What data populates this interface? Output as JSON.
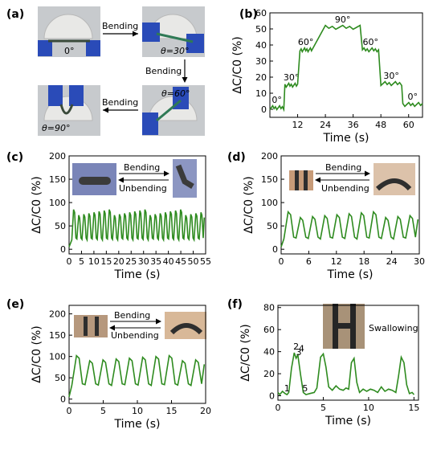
{
  "panel_labels": [
    "(a)",
    "(b)",
    "(c)",
    "(d)",
    "(e)",
    "(f)"
  ],
  "panel_a": {
    "arrow_bending_1": "Bending",
    "arrow_bending_2": "Bending",
    "arrow_bending_3": "Bending",
    "photo_labels": [
      "0°",
      "θ=30°",
      "θ=60°",
      "θ=90°"
    ]
  },
  "chart_data": [
    {
      "panel": "(b)",
      "type": "line",
      "color": "#2e8b1f",
      "xlabel": "Time (s)",
      "ylabel": "ΔC/C0 (%)",
      "xlim": [
        0,
        66
      ],
      "ylim": [
        -5,
        60
      ],
      "xticks": [
        12,
        24,
        36,
        48,
        60
      ],
      "yticks": [
        0,
        10,
        20,
        30,
        40,
        50,
        60
      ],
      "step_levels": [
        {
          "x0": 0,
          "x1": 6,
          "y": 1,
          "label": "0°"
        },
        {
          "x0": 6.5,
          "x1": 12,
          "y": 15,
          "label": "30°"
        },
        {
          "x0": 13,
          "x1": 18,
          "y": 37,
          "label": "60°"
        },
        {
          "x0": 24,
          "x1": 39,
          "y": 51,
          "label": "90°"
        },
        {
          "x0": 40,
          "x1": 47,
          "y": 37,
          "label": "60°"
        },
        {
          "x0": 48,
          "x1": 57,
          "y": 16,
          "label": "30°"
        },
        {
          "x0": 57.5,
          "x1": 66,
          "y": 3,
          "label": "0°"
        }
      ]
    },
    {
      "panel": "(c)",
      "type": "line",
      "color": "#2e8b1f",
      "xlabel": "Time (s)",
      "ylabel": "ΔC/C0 (%)",
      "xlim": [
        0,
        55
      ],
      "ylim": [
        -10,
        200
      ],
      "xticks": [
        0,
        5,
        10,
        15,
        20,
        25,
        30,
        35,
        40,
        45,
        50,
        55
      ],
      "yticks": [
        0,
        50,
        100,
        150,
        200
      ],
      "cycles": 26,
      "peak": 85,
      "baseline": 20,
      "inset_arrow_top": "Bending",
      "inset_arrow_bottom": "Unbending"
    },
    {
      "panel": "(d)",
      "type": "line",
      "color": "#2e8b1f",
      "xlabel": "Time (s)",
      "ylabel": "ΔC/C0 (%)",
      "xlim": [
        0,
        30
      ],
      "ylim": [
        -10,
        200
      ],
      "xticks": [
        0,
        6,
        12,
        18,
        24,
        30
      ],
      "yticks": [
        0,
        50,
        100,
        150,
        200
      ],
      "cycles": 11,
      "peak": 80,
      "baseline": 22,
      "inset_arrow_top": "Bending",
      "inset_arrow_bottom": "Unbending"
    },
    {
      "panel": "(e)",
      "type": "line",
      "color": "#2e8b1f",
      "xlabel": "Time (s)",
      "ylabel": "ΔC/C0 (%)",
      "xlim": [
        0,
        20
      ],
      "ylim": [
        -10,
        220
      ],
      "xticks": [
        0,
        5,
        10,
        15,
        20
      ],
      "yticks": [
        0,
        50,
        100,
        150,
        200
      ],
      "cycles": 10,
      "peak": 102,
      "baseline": 32,
      "inset_arrow_top": "Bending",
      "inset_arrow_bottom": "Unbending"
    },
    {
      "panel": "(f)",
      "type": "line",
      "color": "#2e8b1f",
      "xlabel": "Time (s)",
      "ylabel": "ΔC/C0 (%)",
      "xlim": [
        0,
        15.5
      ],
      "ylim": [
        -4,
        82
      ],
      "xticks": [
        0,
        5,
        10,
        15
      ],
      "yticks": [
        0,
        20,
        40,
        60,
        80
      ],
      "x": [
        0,
        0.2,
        0.5,
        0.8,
        1.0,
        1.2,
        1.5,
        1.8,
        2.0,
        2.2,
        2.5,
        2.8,
        3.1,
        3.5,
        4.0,
        4.3,
        4.7,
        5.0,
        5.3,
        5.6,
        6.0,
        6.4,
        6.8,
        7.2,
        7.5,
        7.8,
        8.1,
        8.4,
        8.7,
        9.0,
        9.4,
        9.8,
        10.2,
        10.6,
        11.0,
        11.4,
        11.8,
        12.2,
        12.6,
        13.0,
        13.3,
        13.6,
        13.9,
        14.2,
        14.5,
        14.8,
        15.0
      ],
      "y": [
        3,
        1,
        4,
        2,
        1,
        3,
        25,
        39,
        34,
        37,
        19,
        3,
        1,
        2,
        3,
        7,
        35,
        38,
        26,
        8,
        5,
        9,
        6,
        5,
        7,
        6,
        30,
        34,
        12,
        3,
        6,
        4,
        6,
        5,
        3,
        8,
        4,
        6,
        5,
        3,
        18,
        35,
        30,
        10,
        2,
        3,
        1
      ],
      "point_labels": [
        {
          "text": "1",
          "x": 1.0,
          "y": 1
        },
        {
          "text": "2",
          "x": 2.0,
          "y": 39
        },
        {
          "text": "3",
          "x": 2.3,
          "y": 34
        },
        {
          "text": "4",
          "x": 2.6,
          "y": 37
        },
        {
          "text": "5",
          "x": 3.0,
          "y": 1
        }
      ],
      "inset_label": "Swallowing"
    }
  ]
}
